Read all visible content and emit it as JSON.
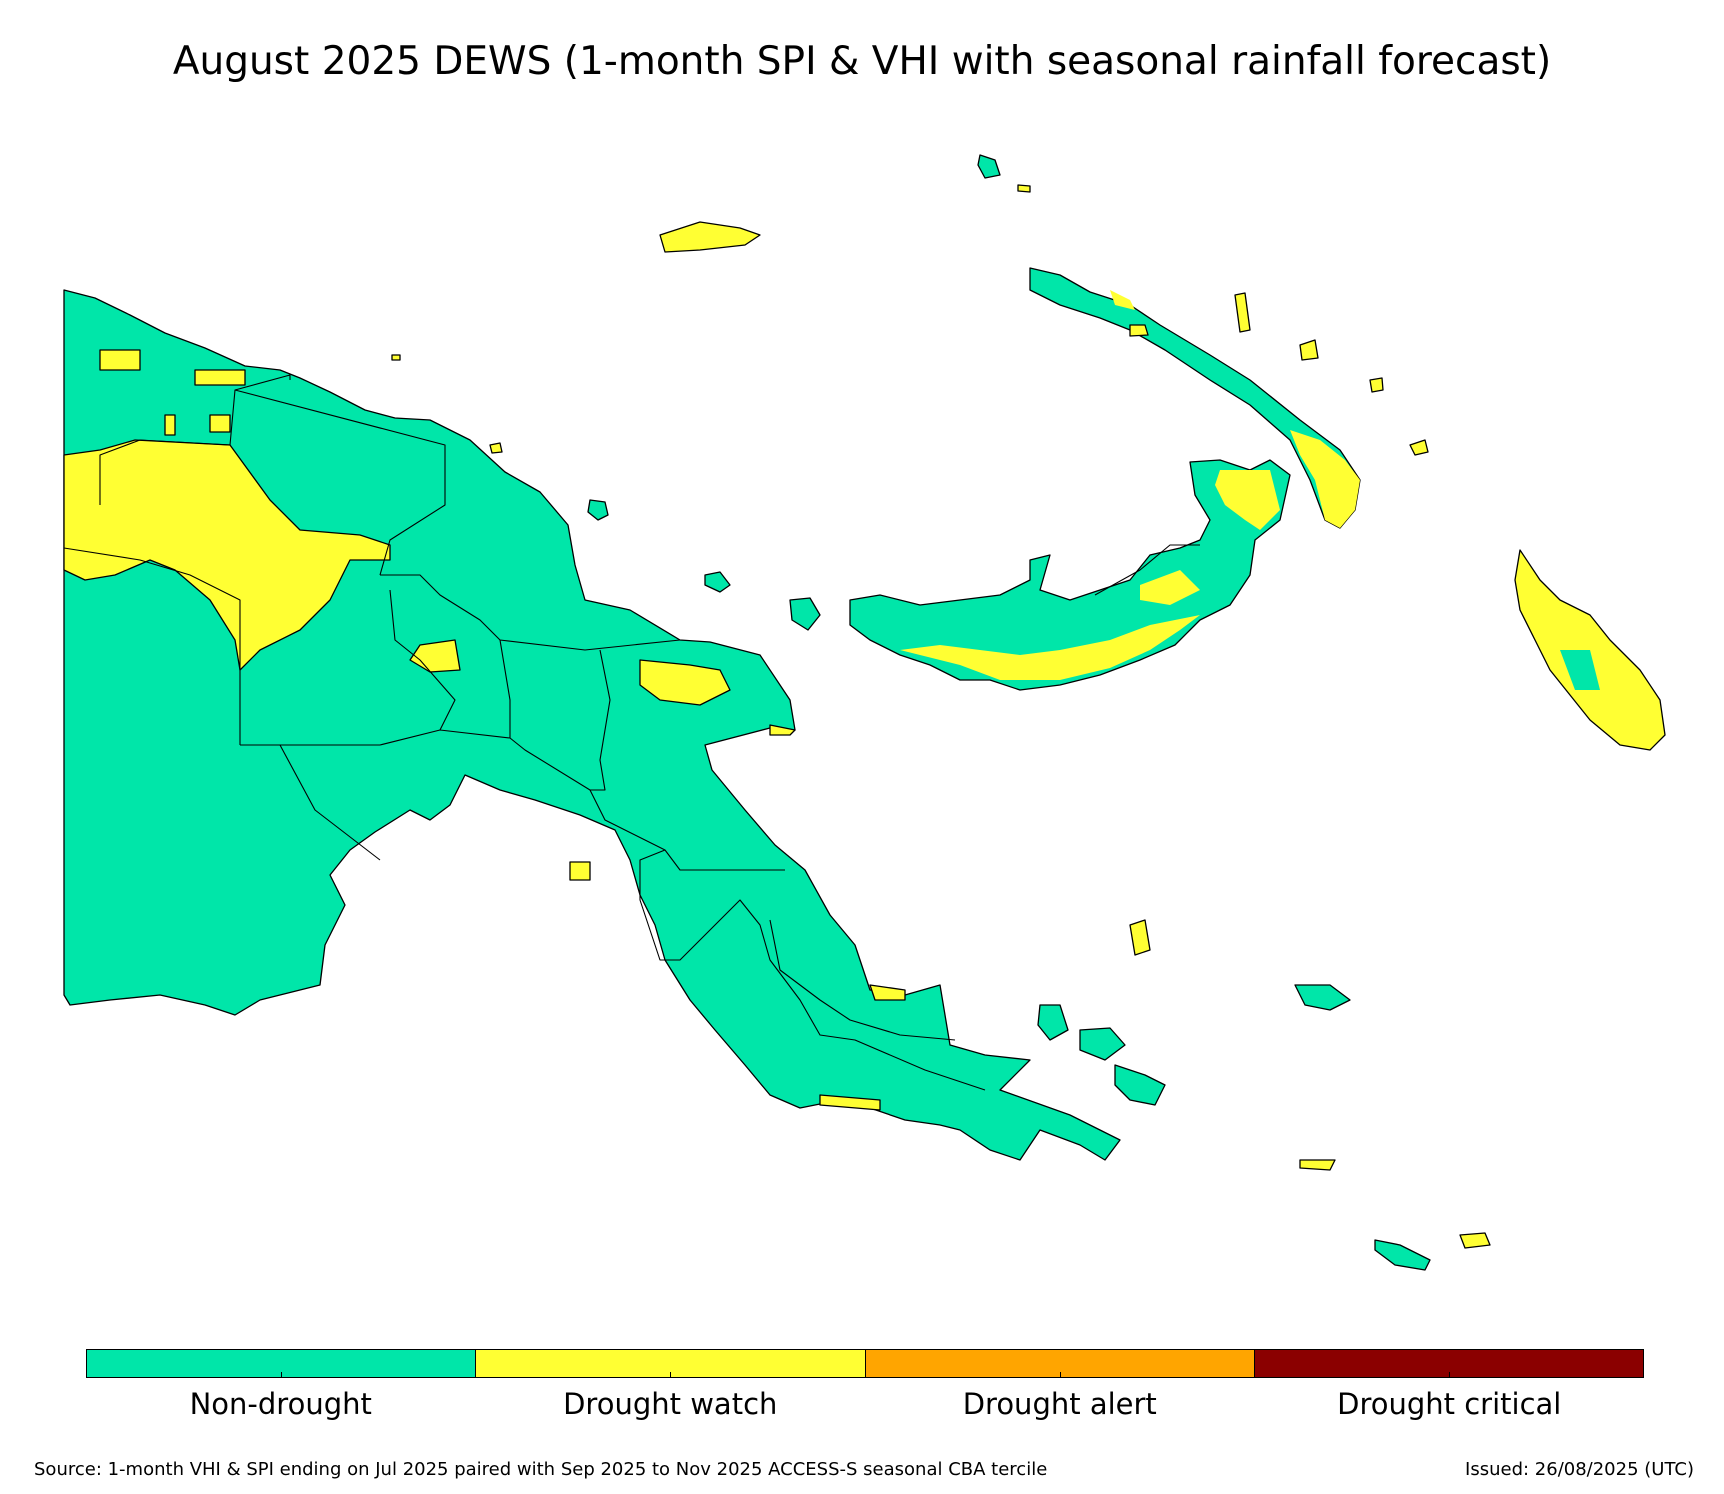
{
  "title": "August 2025 DEWS (1-month SPI & VHI with seasonal rainfall forecast)",
  "legend": {
    "items": [
      {
        "label": "Non-drought",
        "color": "#00E6A9"
      },
      {
        "label": "Drought watch",
        "color": "#FFFF33"
      },
      {
        "label": "Drought alert",
        "color": "#FFA500"
      },
      {
        "label": "Drought critical",
        "color": "#8B0000"
      }
    ]
  },
  "footer": {
    "source": "Source: 1-month VHI & SPI ending on Jul 2025 paired with Sep 2025 to Nov 2025 ACCESS-S seasonal CBA tercile",
    "issued": "Issued: 26/08/2025 (UTC)"
  }
}
